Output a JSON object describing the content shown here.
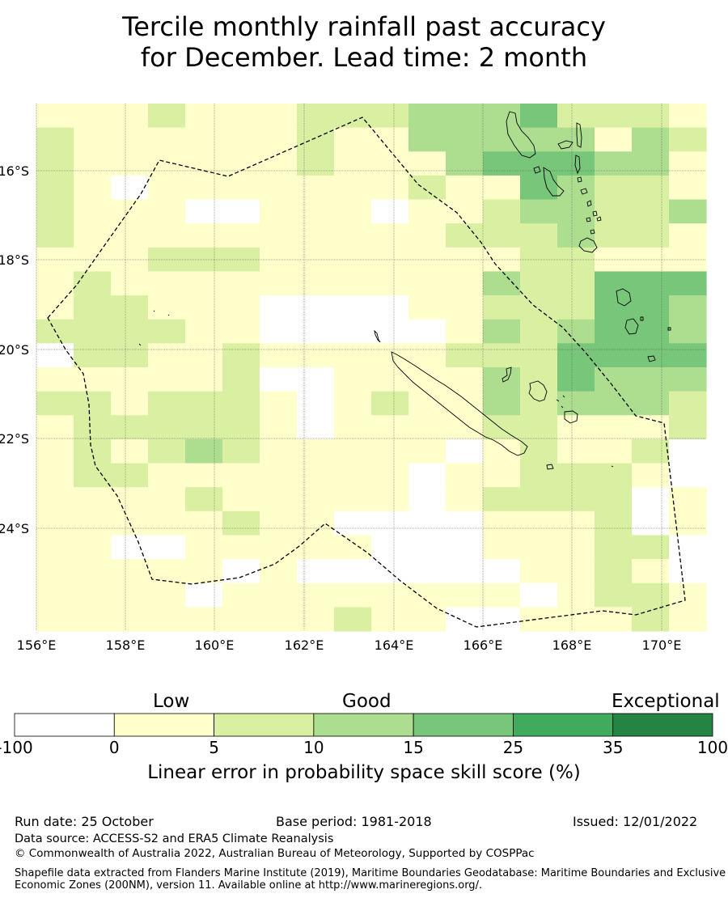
{
  "title": {
    "line1": "Tercile monthly rainfall past accuracy",
    "line2": "for December. Lead time: 2 month"
  },
  "map": {
    "lon_ticks": [
      "156°E",
      "158°E",
      "160°E",
      "162°E",
      "164°E",
      "166°E",
      "168°E",
      "170°E"
    ],
    "lat_ticks": [
      "16°S",
      "18°S",
      "20°S",
      "22°S",
      "24°S"
    ]
  },
  "colorbar": {
    "headings": {
      "low": "Low",
      "good": "Good",
      "exceptional": "Exceptional"
    },
    "ticks": [
      "-100",
      "0",
      "5",
      "10",
      "15",
      "25",
      "35",
      "100"
    ],
    "colors": [
      "#ffffff",
      "#ffffcc",
      "#d9f0a3",
      "#addd8e",
      "#78c679",
      "#41ab5d",
      "#238443"
    ],
    "label": "Linear error in probability space skill score (%)"
  },
  "footer": {
    "run_date": "Run date: 25 October",
    "base_period": "Base period: 1981-2018",
    "issued": "Issued: 12/01/2022",
    "data_source": "Data source: ACCESS-S2 and ERA5 Climate Reanalysis",
    "copyright": "© Commonwealth of Australia 2022, Australian Bureau of Meteorology, Supported by COSPPac",
    "shapefile": "Shapefile data extracted from Flanders Marine Institute (2019), Maritime Boundaries Geodatabase: Maritime Boundaries and Exclusive Economic Zones (200NM), version 11. Available online at http://www.marineregions.org/."
  }
}
